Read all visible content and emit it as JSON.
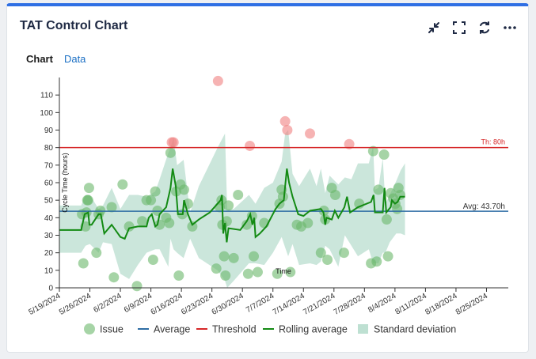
{
  "header": {
    "title": "TAT Control Chart"
  },
  "toolbar": {
    "icons": [
      "collapse-icon",
      "fullscreen-icon",
      "refresh-icon",
      "more-icon"
    ]
  },
  "tabs": [
    {
      "label": "Chart",
      "active": true
    },
    {
      "label": "Data",
      "active": false
    }
  ],
  "chart_data": {
    "type": "scatter",
    "title": "",
    "xlabel": "Time",
    "ylabel": "Cycle Time (hours)",
    "ylim": [
      0,
      120
    ],
    "yticks": [
      0,
      10,
      20,
      30,
      40,
      50,
      60,
      70,
      80,
      90,
      100,
      110
    ],
    "xlim": [
      0,
      103
    ],
    "xticks": [
      {
        "day": 0,
        "label": "5/19/2024"
      },
      {
        "day": 7,
        "label": "5/26/2024"
      },
      {
        "day": 14,
        "label": "6/2/2024"
      },
      {
        "day": 21,
        "label": "6/9/2024"
      },
      {
        "day": 28,
        "label": "6/16/2024"
      },
      {
        "day": 35,
        "label": "6/23/2024"
      },
      {
        "day": 42,
        "label": "6/30/2024"
      },
      {
        "day": 49,
        "label": "7/7/2024"
      },
      {
        "day": 56,
        "label": "7/14/2024"
      },
      {
        "day": 63,
        "label": "7/21/2024"
      },
      {
        "day": 70,
        "label": "7/28/2024"
      },
      {
        "day": 77,
        "label": "8/4/2024"
      },
      {
        "day": 84,
        "label": "8/11/2024"
      },
      {
        "day": 91,
        "label": "8/18/2024"
      },
      {
        "day": 98,
        "label": "8/25/2024"
      }
    ],
    "x_unit": "days since 5/19/2024",
    "average": {
      "value": 43.7,
      "label": "Avg: 43.70h",
      "color": "#2e6da4"
    },
    "threshold": {
      "value": 80,
      "label": "Th: 80h",
      "color": "#d62728"
    },
    "colors": {
      "issue": "#6bb86b",
      "issue_over": "#f08080",
      "rolling": "#138a13",
      "band": "#a8d5c3"
    },
    "issues": [
      [
        5.2,
        42
      ],
      [
        5.5,
        14
      ],
      [
        6,
        35
      ],
      [
        6.2,
        43
      ],
      [
        6.4,
        50
      ],
      [
        6.6,
        50
      ],
      [
        6.8,
        57
      ],
      [
        8.5,
        20
      ],
      [
        9,
        42
      ],
      [
        9.4,
        44
      ],
      [
        12,
        46
      ],
      [
        12.5,
        6
      ],
      [
        14.5,
        59
      ],
      [
        16,
        35
      ],
      [
        17.8,
        1
      ],
      [
        19,
        38
      ],
      [
        20,
        50
      ],
      [
        21,
        50
      ],
      [
        21.5,
        16
      ],
      [
        22,
        55
      ],
      [
        22.5,
        44
      ],
      [
        23,
        36
      ],
      [
        24.5,
        40
      ],
      [
        25.2,
        37
      ],
      [
        25.5,
        77
      ],
      [
        25.8,
        83
      ],
      [
        26.2,
        83
      ],
      [
        26.8,
        55
      ],
      [
        27.4,
        7
      ],
      [
        27.8,
        59
      ],
      [
        28.2,
        42
      ],
      [
        28.6,
        56
      ],
      [
        29.5,
        48
      ],
      [
        30.5,
        35
      ],
      [
        36,
        11
      ],
      [
        36.4,
        118
      ],
      [
        36.8,
        46
      ],
      [
        37.2,
        50
      ],
      [
        37.4,
        36
      ],
      [
        37.8,
        18
      ],
      [
        38.1,
        7
      ],
      [
        38.4,
        38
      ],
      [
        38.8,
        47
      ],
      [
        40,
        17
      ],
      [
        41,
        53
      ],
      [
        43,
        36
      ],
      [
        43.3,
        8
      ],
      [
        43.7,
        81
      ],
      [
        44.2,
        41
      ],
      [
        44.6,
        18
      ],
      [
        45.5,
        9
      ],
      [
        47,
        37
      ],
      [
        50,
        8
      ],
      [
        50.5,
        48
      ],
      [
        51,
        56
      ],
      [
        51.3,
        52
      ],
      [
        51.8,
        95
      ],
      [
        52.3,
        90
      ],
      [
        53,
        9
      ],
      [
        54.5,
        36
      ],
      [
        55.5,
        35
      ],
      [
        57,
        37
      ],
      [
        57.5,
        88
      ],
      [
        60,
        20
      ],
      [
        60.7,
        44
      ],
      [
        61,
        39
      ],
      [
        61.5,
        16
      ],
      [
        62.5,
        57
      ],
      [
        63.3,
        53
      ],
      [
        65.3,
        20
      ],
      [
        66.5,
        82
      ],
      [
        68.8,
        48
      ],
      [
        71.5,
        14
      ],
      [
        72,
        78
      ],
      [
        72.8,
        15
      ],
      [
        73.2,
        56
      ],
      [
        74.5,
        76
      ],
      [
        75.1,
        39
      ],
      [
        75.4,
        18
      ],
      [
        76,
        54
      ],
      [
        76.6,
        51
      ],
      [
        77.1,
        48
      ],
      [
        77.5,
        45
      ],
      [
        77.8,
        57
      ],
      [
        78.2,
        53
      ]
    ],
    "rolling_average": [
      [
        0,
        33
      ],
      [
        5,
        33
      ],
      [
        5.8,
        42
      ],
      [
        6.6,
        43
      ],
      [
        6.9,
        36
      ],
      [
        7.4,
        36
      ],
      [
        9,
        42
      ],
      [
        9.5,
        42
      ],
      [
        10.3,
        31
      ],
      [
        12,
        36
      ],
      [
        14,
        29
      ],
      [
        15,
        28
      ],
      [
        16,
        34
      ],
      [
        18,
        35
      ],
      [
        20,
        35
      ],
      [
        20.5,
        40
      ],
      [
        21.2,
        42
      ],
      [
        22,
        35
      ],
      [
        22.5,
        36
      ],
      [
        23,
        42
      ],
      [
        24.5,
        46
      ],
      [
        25.5,
        57
      ],
      [
        26,
        68
      ],
      [
        26.7,
        58
      ],
      [
        27.2,
        42
      ],
      [
        28.3,
        42
      ],
      [
        28.6,
        50
      ],
      [
        29.5,
        42
      ],
      [
        30.5,
        36
      ],
      [
        32,
        39
      ],
      [
        34.5,
        43
      ],
      [
        37,
        50
      ],
      [
        37.3,
        53
      ],
      [
        37.6,
        31
      ],
      [
        38,
        37
      ],
      [
        38.4,
        26
      ],
      [
        38.8,
        34
      ],
      [
        41.5,
        33
      ],
      [
        43,
        38
      ],
      [
        43.8,
        42
      ],
      [
        44.3,
        36
      ],
      [
        44.7,
        40
      ],
      [
        45,
        29
      ],
      [
        46,
        31
      ],
      [
        47.5,
        35
      ],
      [
        49.6,
        45
      ],
      [
        50.5,
        48
      ],
      [
        51.5,
        50
      ],
      [
        51.8,
        58
      ],
      [
        52.2,
        68
      ],
      [
        52.7,
        60
      ],
      [
        53.5,
        52
      ],
      [
        54.8,
        42
      ],
      [
        56,
        41
      ],
      [
        57.5,
        44
      ],
      [
        60,
        45
      ],
      [
        60.6,
        43
      ],
      [
        61,
        36
      ],
      [
        61.3,
        40
      ],
      [
        62.5,
        39
      ],
      [
        63.2,
        44
      ],
      [
        64,
        40
      ],
      [
        65.4,
        46
      ],
      [
        66,
        52
      ],
      [
        66.7,
        43
      ],
      [
        68.5,
        46
      ],
      [
        71.5,
        49
      ],
      [
        72.1,
        53
      ],
      [
        72.4,
        43
      ],
      [
        74.2,
        43
      ],
      [
        74.6,
        57
      ],
      [
        75,
        43
      ],
      [
        76,
        46
      ],
      [
        76.3,
        50
      ],
      [
        77,
        48
      ],
      [
        77.6,
        49
      ],
      [
        78.2,
        52
      ],
      [
        79.3,
        52
      ]
    ],
    "std_band": [
      [
        0,
        20,
        47
      ],
      [
        5,
        20,
        47
      ],
      [
        6,
        24,
        53
      ],
      [
        7,
        25,
        53
      ],
      [
        9,
        20,
        45
      ],
      [
        10,
        26,
        47
      ],
      [
        12,
        25,
        57
      ],
      [
        14,
        8,
        45
      ],
      [
        16,
        5,
        53
      ],
      [
        18,
        13,
        53
      ],
      [
        20,
        20,
        52
      ],
      [
        22,
        22,
        55
      ],
      [
        23,
        22,
        62
      ],
      [
        25,
        12,
        77
      ],
      [
        25.5,
        28,
        80
      ],
      [
        26.2,
        22,
        86
      ],
      [
        27,
        20,
        70
      ],
      [
        28.5,
        17,
        73
      ],
      [
        30,
        28,
        43
      ],
      [
        32,
        17,
        58
      ],
      [
        36.3,
        10,
        80
      ],
      [
        38,
        4,
        88
      ],
      [
        38.5,
        0,
        45
      ],
      [
        40,
        4,
        45
      ],
      [
        43.5,
        14,
        53
      ],
      [
        45,
        14,
        48
      ],
      [
        47,
        13,
        57
      ],
      [
        49,
        20,
        60
      ],
      [
        51,
        29,
        72
      ],
      [
        51.8,
        23,
        88
      ],
      [
        52.5,
        18,
        90
      ],
      [
        53.5,
        25,
        65
      ],
      [
        55,
        13,
        58
      ],
      [
        57.5,
        14,
        68
      ],
      [
        59,
        13,
        58
      ],
      [
        60,
        15,
        68
      ],
      [
        61,
        24,
        54
      ],
      [
        62,
        22,
        64
      ],
      [
        64,
        12,
        59
      ],
      [
        65.5,
        30,
        63
      ],
      [
        67,
        24,
        62
      ],
      [
        68.5,
        18,
        71
      ],
      [
        71,
        22,
        71
      ],
      [
        72,
        14,
        81
      ],
      [
        72.4,
        14,
        56
      ],
      [
        73.2,
        14,
        57
      ],
      [
        74.2,
        20,
        74
      ],
      [
        74.8,
        20,
        48
      ],
      [
        75.8,
        26,
        53
      ],
      [
        77.3,
        31,
        61
      ],
      [
        78.3,
        31,
        67
      ],
      [
        79.3,
        30,
        71
      ]
    ],
    "legend": [
      {
        "key": "issue",
        "label": "Issue"
      },
      {
        "key": "average",
        "label": "Average"
      },
      {
        "key": "threshold",
        "label": "Threshold"
      },
      {
        "key": "rolling",
        "label": "Rolling average"
      },
      {
        "key": "band",
        "label": "Standard deviation"
      }
    ]
  }
}
